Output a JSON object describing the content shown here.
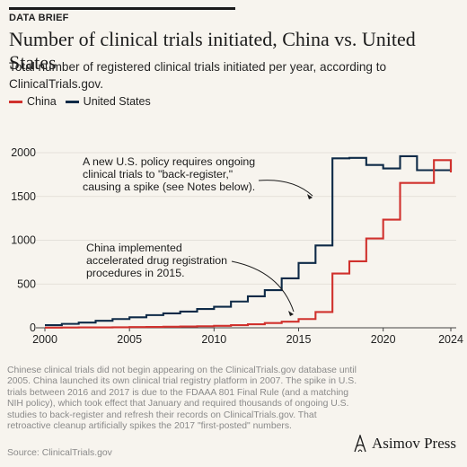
{
  "header": {
    "eyebrow": "DATA BRIEF",
    "title": "Number of clinical trials initiated, China vs. United States",
    "subtitle": "Total number of registered clinical trials initiated per year, according to ClinicalTrials.gov."
  },
  "colors": {
    "china": "#d0312d",
    "us": "#0e2a47",
    "background": "#f7f4ee",
    "grid": "#dedad3"
  },
  "legend": [
    {
      "label": "China",
      "color": "#d0312d"
    },
    {
      "label": "United States",
      "color": "#0e2a47"
    }
  ],
  "chart_data": {
    "type": "line",
    "step": true,
    "xlim": [
      2000,
      2024
    ],
    "ylim": [
      0,
      2000
    ],
    "x_ticks": [
      2000,
      2005,
      2010,
      2015,
      2020,
      2024
    ],
    "y_ticks": [
      0,
      500,
      1000,
      1500,
      2000
    ],
    "grid": "horizontal",
    "x": [
      2000,
      2001,
      2002,
      2003,
      2004,
      2005,
      2006,
      2007,
      2008,
      2009,
      2010,
      2011,
      2012,
      2013,
      2014,
      2015,
      2016,
      2017,
      2018,
      2019,
      2020,
      2021,
      2022,
      2023,
      2024
    ],
    "series": [
      {
        "name": "United States",
        "color": "#0e2a47",
        "values": [
          30,
          45,
          60,
          80,
          100,
          120,
          145,
          165,
          185,
          215,
          240,
          300,
          360,
          430,
          565,
          740,
          940,
          1935,
          1940,
          1860,
          1820,
          1960,
          1800,
          1800,
          1920
        ]
      },
      {
        "name": "China",
        "color": "#d0312d",
        "values": [
          2,
          3,
          4,
          5,
          6,
          8,
          10,
          12,
          15,
          18,
          22,
          30,
          40,
          55,
          70,
          100,
          180,
          620,
          760,
          1020,
          1235,
          1655,
          1655,
          1915,
          1775
        ]
      }
    ],
    "annotations": [
      {
        "lines": [
          "A new U.S. policy requires ongoing",
          "clinical trials to \"back-register,\"",
          "causing a spike (see Notes below)."
        ]
      },
      {
        "lines": [
          "China implemented",
          "accelerated drug registration",
          "procedures in 2015."
        ]
      }
    ]
  },
  "notes": "Chinese clinical trials did not begin appearing on the ClinicalTrials.gov database until 2005. China launched its own clinical trial registry platform in 2007. The spike in U.S. trials between 2016 and 2017 is due to the FDAAA 801 Final Rule (and a matching NIH policy), which took effect that January and required thousands of ongoing U.S. studies to back-register and refresh their records on ClinicalTrials.gov. That retroactive cleanup artificially spikes the 2017 \"first-posted\" numbers.",
  "source": "Source: ClinicalTrials.gov",
  "brand": "Asimov Press"
}
